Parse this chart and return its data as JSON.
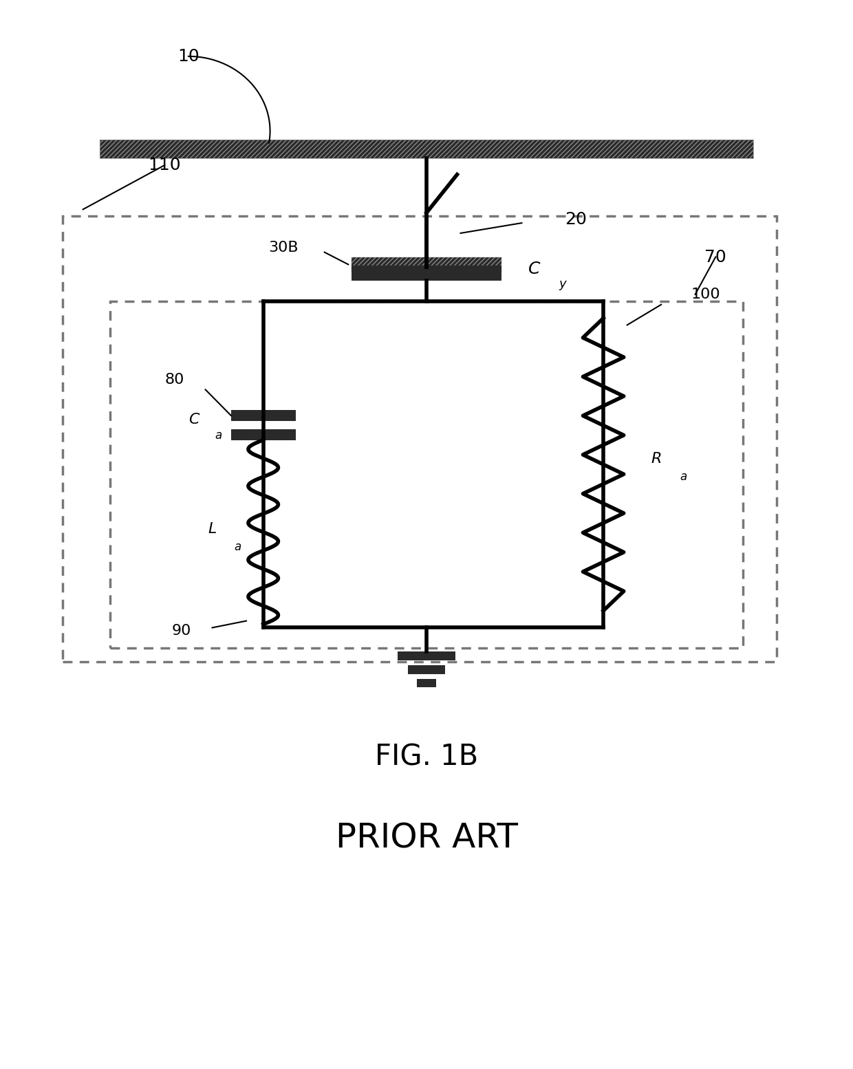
{
  "title_fig": "FIG. 1B",
  "title_sub": "PRIOR ART",
  "bg_color": "#ffffff",
  "line_color": "#000000",
  "label_10": "10",
  "label_20": "20",
  "label_30B": "30B",
  "label_70": "70",
  "label_80": "80",
  "label_90": "90",
  "label_100": "100",
  "label_110": "110",
  "label_Cy": "C",
  "label_Cy_sub": "y",
  "label_Ca": "C",
  "label_Ca_sub": "a",
  "label_La": "L",
  "label_La_sub": "a",
  "label_Ra": "R",
  "label_Ra_sub": "a",
  "fig_width": 12.4,
  "fig_height": 15.54
}
